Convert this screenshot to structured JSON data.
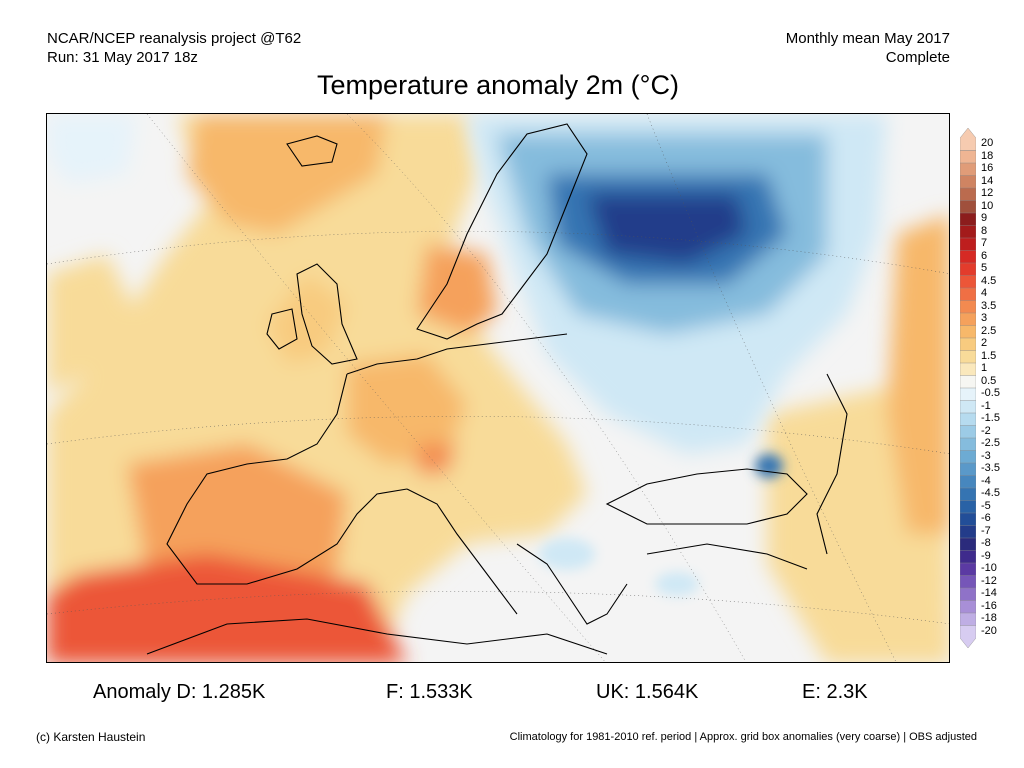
{
  "header": {
    "left_line1": "NCAR/NCEP reanalysis project @T62",
    "left_line2": "Run: 31 May 2017 18z",
    "right_line1": "Monthly mean May 2017",
    "right_line2": "Complete"
  },
  "title": "Temperature anomaly 2m (°C)",
  "stats": {
    "d": "Anomaly D: 1.285K",
    "f": "F: 1.533K",
    "uk": "UK: 1.564K",
    "e": "E: 2.3K"
  },
  "footer": {
    "left": "(c) Karsten Haustein",
    "right": "Climatology for 1981-2010 ref. period | Approx. grid box anomalies (very coarse) | OBS adjusted"
  },
  "colorbar": {
    "labels": [
      "20",
      "18",
      "16",
      "14",
      "12",
      "10",
      "9",
      "8",
      "7",
      "6",
      "5",
      "4.5",
      "4",
      "3.5",
      "3",
      "2.5",
      "2",
      "1.5",
      "1",
      "0.5",
      "-0.5",
      "-1",
      "-1.5",
      "-2",
      "-2.5",
      "-3",
      "-3.5",
      "-4",
      "-4.5",
      "-5",
      "-6",
      "-7",
      "-8",
      "-9",
      "-10",
      "-12",
      "-14",
      "-16",
      "-18",
      "-20"
    ],
    "colors": [
      "#f6cbb0",
      "#efb593",
      "#e09c78",
      "#cf8462",
      "#bb6b4e",
      "#a0503c",
      "#8c1d1d",
      "#a31b1b",
      "#be1e1e",
      "#d62a24",
      "#e33c2c",
      "#ec5638",
      "#f06f44",
      "#f38a50",
      "#f5a15c",
      "#f7b86a",
      "#f8cb7f",
      "#f8db99",
      "#fae8bc",
      "#f6f6f2",
      "#e6f3fa",
      "#cfe8f5",
      "#b6dbef",
      "#9ccbe6",
      "#85bcdd",
      "#6dabd3",
      "#5a99c9",
      "#4787be",
      "#3574b2",
      "#2962a6",
      "#224e98",
      "#233c8a",
      "#2b2b7c",
      "#3f2b8c",
      "#5b3aa3",
      "#7656b8",
      "#8f72c8",
      "#a88fd7",
      "#bfaee4",
      "#d7ccf1"
    ]
  },
  "colors": {
    "warm_light": "#f8db99",
    "warm_mid": "#f5a15c",
    "warm_strong": "#ec5638",
    "cold_light": "#cfe8f5",
    "cold_mid": "#5a99c9",
    "cold_strong": "#233c8a",
    "neutral": "#f4f4f4"
  }
}
